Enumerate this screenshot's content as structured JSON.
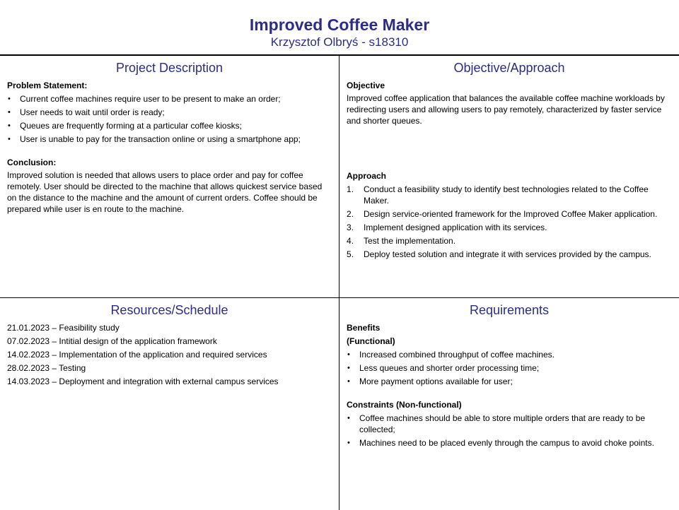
{
  "header": {
    "title": "Improved Coffee Maker",
    "subtitle": "Krzysztof Olbryś - s18310"
  },
  "project_description": {
    "heading": "Project Description",
    "problem_label": "Problem Statement:",
    "problems": [
      "Current coffee machines require user to be present to make an order;",
      "User needs to wait until order is ready;",
      "Queues are frequently forming at a particular coffee kiosks;",
      "User is unable to pay for the transaction online or using a smartphone app;"
    ],
    "conclusion_label": "Conclusion:",
    "conclusion_text": "Improved solution is needed that allows users to place order and pay for coffee remotely. User should be directed to the machine that allows quickest service based on the distance to the machine and the amount of current orders. Coffee should be prepared while user is en route to the machine."
  },
  "objective_approach": {
    "heading": "Objective/Approach",
    "objective_label": "Objective",
    "objective_text": "Improved coffee application that balances the available coffee machine workloads by redirecting users and allowing users to pay remotely, characterized by faster service and shorter queues.",
    "approach_label": "Approach",
    "steps": [
      "Conduct a feasibility study to identify best technologies related to the Coffee Maker.",
      "Design service-oriented framework for the Improved Coffee Maker application.",
      "Implement designed application with its services.",
      "Test the implementation.",
      "Deploy tested solution and integrate it with services provided by the campus."
    ]
  },
  "resources_schedule": {
    "heading": "Resources/Schedule",
    "items": [
      "21.01.2023 – Feasibility study",
      "07.02.2023 – Intitial design of the application framework",
      "14.02.2023 – Implementation of the application and required services",
      "28.02.2023 – Testing",
      "14.03.2023 – Deployment and integration with external campus services"
    ]
  },
  "requirements": {
    "heading": "Requirements",
    "benefits_label": "Benefits",
    "functional_label": "(Functional)",
    "functional": [
      "Increased combined throughput of coffee machines.",
      "Less queues and shorter order processing time;",
      "More payment options available for user;"
    ],
    "constraints_label": "Constraints (Non-functional)",
    "constraints": [
      "Coffee machines should be able to store multiple orders that are ready to be collected;",
      "Machines need to be placed evenly through the campus to avoid choke points."
    ]
  }
}
